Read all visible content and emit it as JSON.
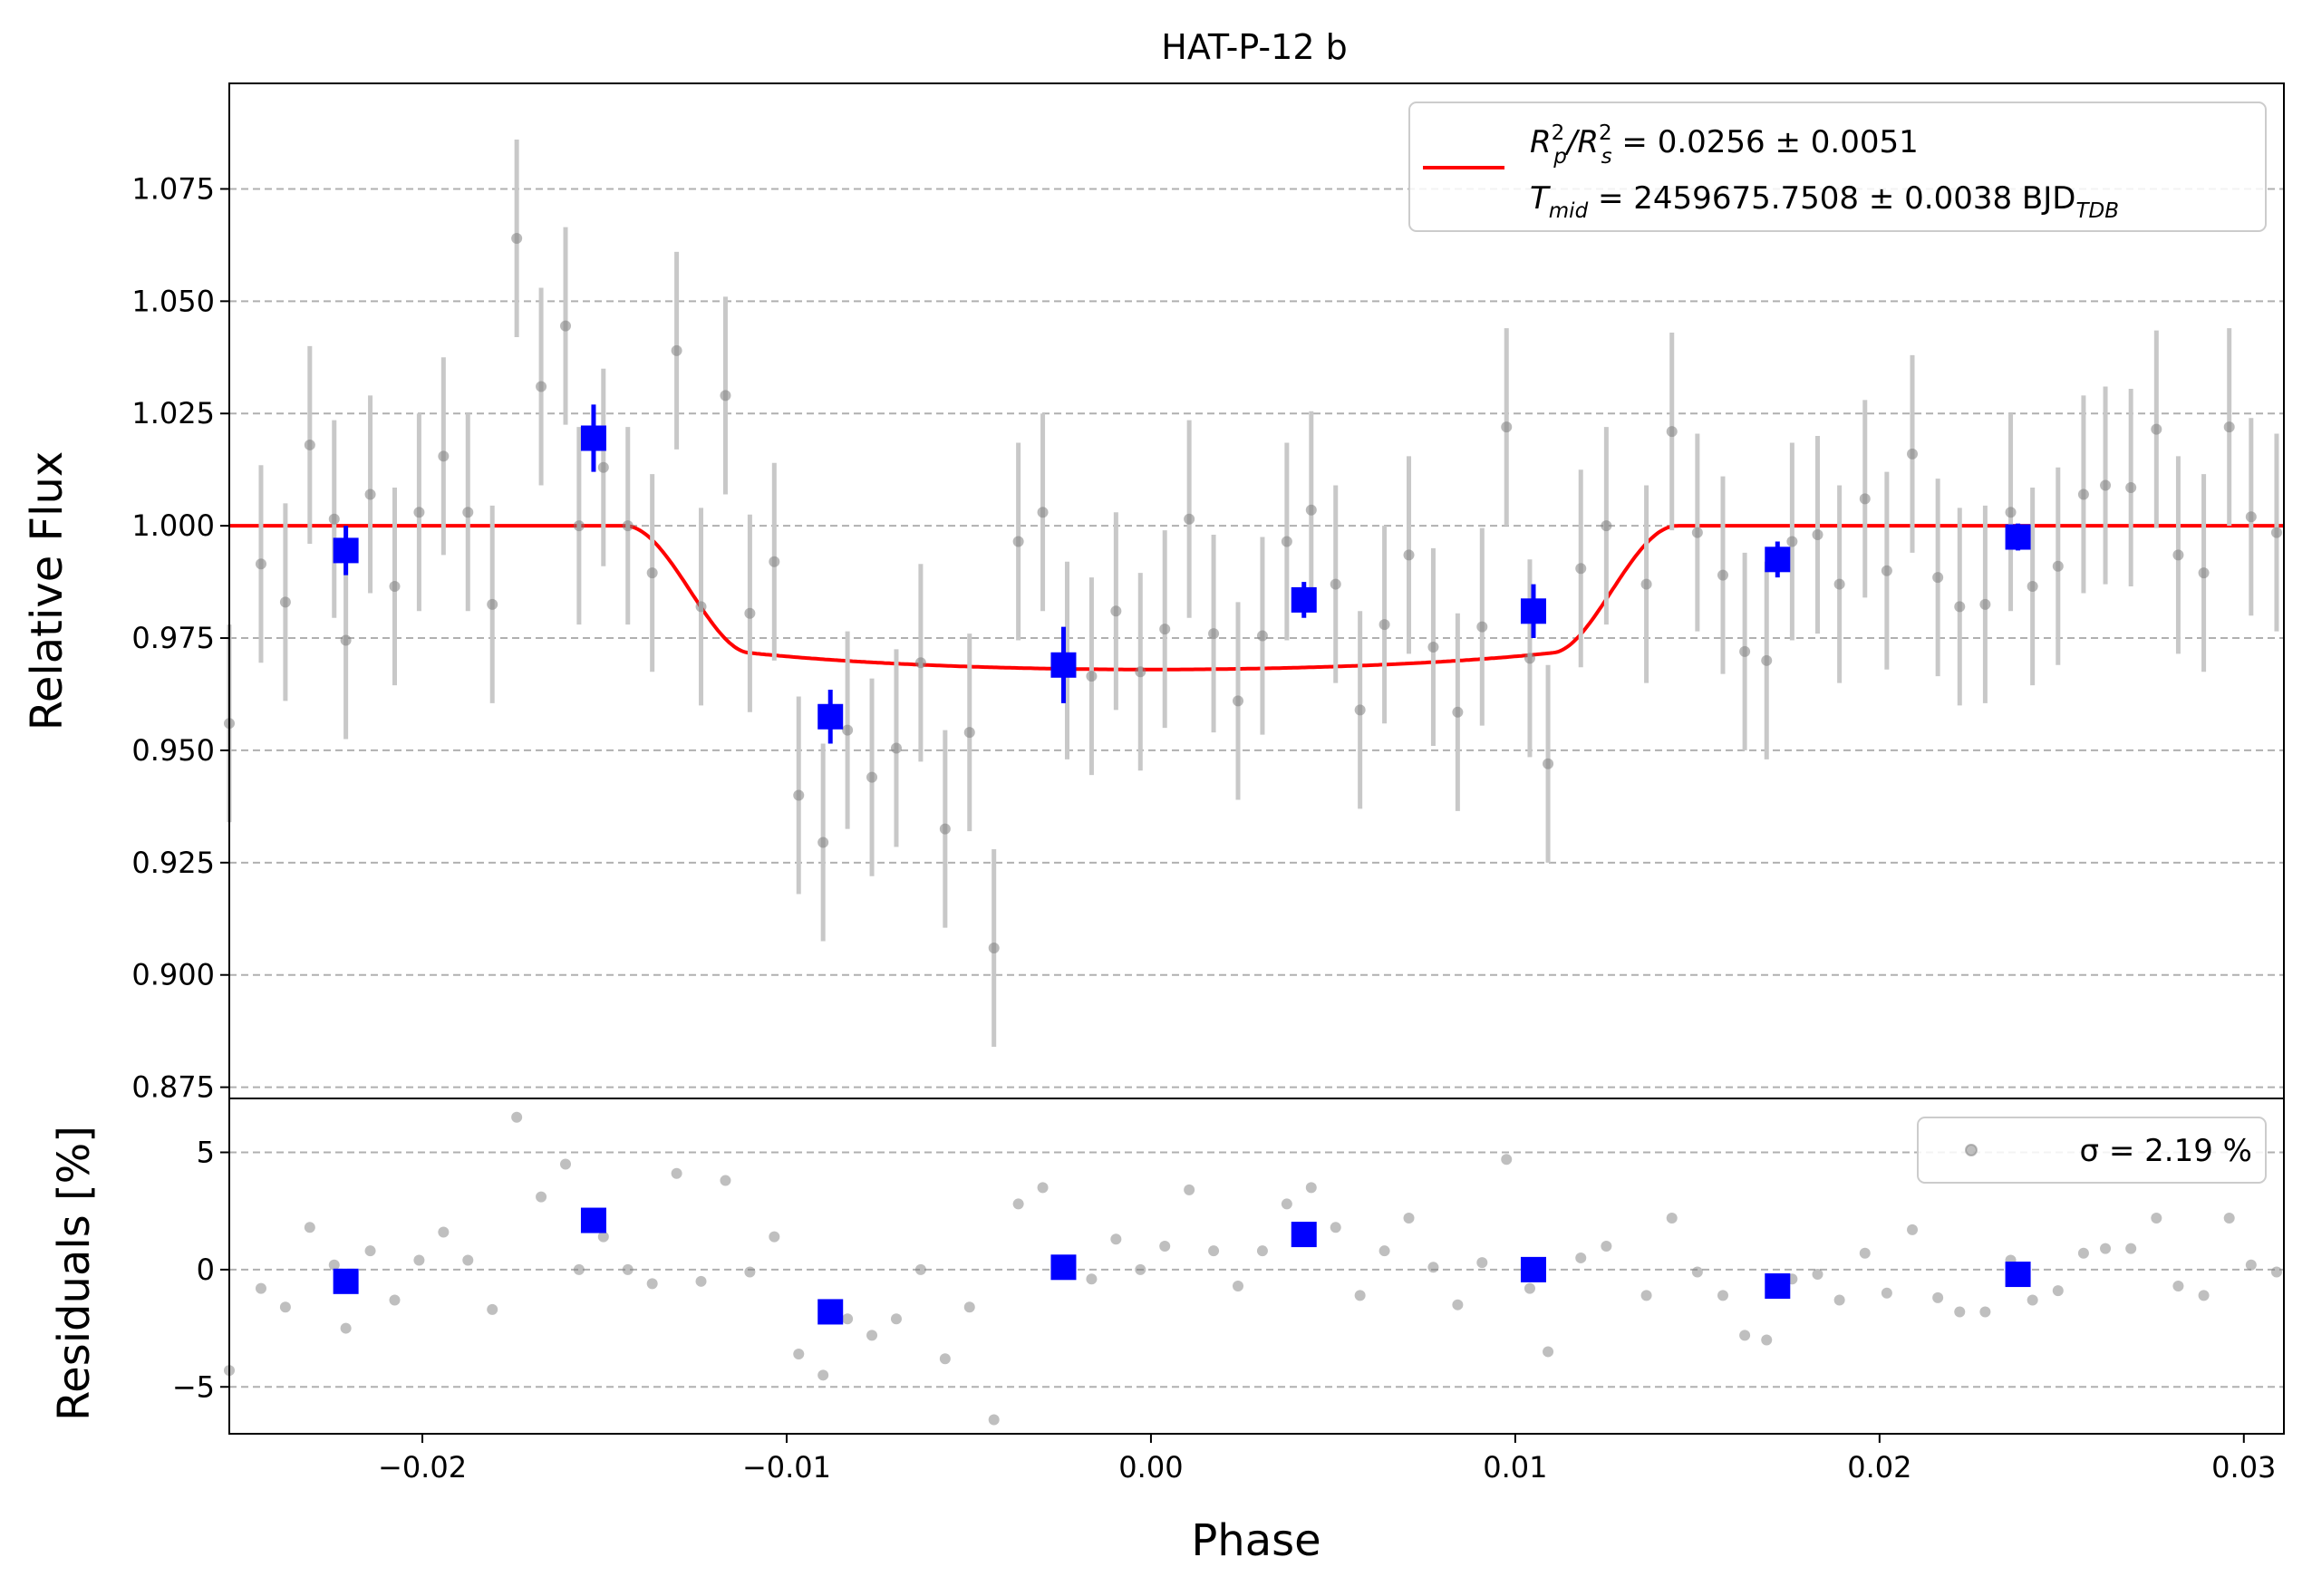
{
  "chart_data": [
    {
      "type": "scatter",
      "title": "HAT-P-12 b",
      "xlabel": "",
      "ylabel": "Relative Flux",
      "xlim": [
        -0.0253,
        0.0311
      ],
      "ylim": [
        0.8725,
        1.0985
      ],
      "grid": "horizontal dashed",
      "yticks": [
        "0.875",
        "0.900",
        "0.925",
        "0.950",
        "0.975",
        "1.000",
        "1.025",
        "1.050",
        "1.075"
      ],
      "legend": {
        "placement": "top-right",
        "rp_label": "R²ₚ/R²ₛ = 0.0256 ± 0.0051",
        "rp_main": "R",
        "rp_p": "p",
        "rp_mid": "/R",
        "rp_s": "s",
        "rp_value": " = 0.0256 ± 0.0051",
        "rp_sup": "2",
        "tmid_label": "Tmid = 2459675.7508 ± 0.0038 BJDTDB",
        "tmid_main": "T",
        "tmid_sub": "mid",
        "tmid_value": " = 2459675.7508 ± 0.0038 BJD",
        "tmid_unit_sub": "TDB"
      },
      "colors": {
        "raw": "#808080",
        "errorbar": "#c8c8c8",
        "binned": "#0000ff",
        "model": "#ff0000"
      },
      "raw_series": {
        "name": "",
        "error": 0.022,
        "x": [
          -0.0253,
          -0.02443,
          -0.02376,
          -0.02309,
          -0.02242,
          -0.0221,
          -0.02143,
          -0.02076,
          -0.02009,
          -0.01942,
          -0.01875,
          -0.01808,
          -0.01741,
          -0.01674,
          -0.01607,
          -0.0157,
          -0.01503,
          -0.01436,
          -0.01369,
          -0.01302,
          -0.01235,
          -0.01168,
          -0.01101,
          -0.01034,
          -0.00967,
          -0.009,
          -0.00833,
          -0.00766,
          -0.00699,
          -0.00632,
          -0.00565,
          -0.00498,
          -0.00431,
          -0.00364,
          -0.00297,
          -0.0023,
          -0.00163,
          -0.00096,
          -0.00029,
          0.00038,
          0.00105,
          0.00172,
          0.00239,
          0.00306,
          0.00373,
          0.0044,
          0.00507,
          0.00574,
          0.00641,
          0.00708,
          0.00775,
          0.00842,
          0.00909,
          0.00976,
          0.0104,
          0.0109,
          0.0118,
          0.0125,
          0.0136,
          0.0143,
          0.015,
          0.0157,
          0.0163,
          0.0169,
          0.0176,
          0.0183,
          0.0189,
          0.0196,
          0.0202,
          0.0209,
          0.0216,
          0.0222,
          0.0229,
          0.0236,
          0.0242,
          0.0249,
          0.0256,
          0.0262,
          0.0269,
          0.0276,
          0.0282,
          0.0289,
          0.0296,
          0.0302,
          0.0309
        ],
        "y": [
          0.956,
          0.9915,
          0.983,
          1.018,
          1.0015,
          0.9745,
          1.007,
          0.9865,
          1.003,
          1.0155,
          1.003,
          0.9825,
          1.064,
          1.031,
          1.0445,
          1.0,
          1.013,
          1.0,
          0.9895,
          1.039,
          0.982,
          1.029,
          0.9805,
          0.992,
          0.94,
          0.9295,
          0.9545,
          0.944,
          0.9505,
          0.9695,
          0.9325,
          0.954,
          0.906,
          0.9965,
          1.003,
          0.97,
          0.9665,
          0.981,
          0.9675,
          0.977,
          1.0015,
          0.976,
          0.961,
          0.9755,
          0.9965,
          1.0035,
          0.987,
          0.959,
          0.978,
          0.9935,
          0.973,
          0.9585,
          0.9775,
          1.022,
          0.9705,
          0.947,
          0.9905,
          1.0,
          0.987,
          1.021,
          0.9985,
          0.989,
          0.972,
          0.97,
          0.9965,
          0.998,
          0.987,
          1.006,
          0.99,
          1.016,
          0.9885,
          0.982,
          0.9825,
          1.003,
          0.9865,
          0.991,
          1.007,
          1.009,
          1.0085,
          1.0215,
          0.9935,
          0.9895,
          1.022,
          1.002,
          0.9985
        ]
      },
      "binned_series": {
        "name": "",
        "x": [
          -0.0221,
          -0.0153,
          -0.0088,
          -0.0024,
          0.0042,
          0.0105,
          0.0172,
          0.0238
        ],
        "y": [
          0.9945,
          1.0195,
          0.9575,
          0.969,
          0.9835,
          0.981,
          0.9925,
          0.9975
        ],
        "error": [
          0.0055,
          0.0075,
          0.006,
          0.0085,
          0.004,
          0.006,
          0.004,
          0.003
        ]
      },
      "model": {
        "name": "",
        "depth": 0.0256,
        "t14": 0.0289,
        "ingress": 0.0034,
        "min_flux": 0.968
      }
    },
    {
      "type": "scatter",
      "title": "",
      "xlabel": "Phase",
      "ylabel": "Residuals [%]",
      "xlim": [
        -0.0253,
        0.0311
      ],
      "ylim": [
        -7.0,
        7.3
      ],
      "grid": "horizontal dashed",
      "yticks": [
        "−5",
        "0",
        "5"
      ],
      "xticks": [
        "−0.02",
        "−0.01",
        "0.00",
        "0.01",
        "0.02",
        "0.03"
      ],
      "legend": {
        "placement": "top-right",
        "label": "σ = 2.19 %"
      },
      "raw_residuals": [
        -4.3,
        -0.8,
        -1.6,
        1.8,
        0.2,
        -2.5,
        0.8,
        -1.3,
        0.4,
        1.6,
        0.4,
        -1.7,
        6.5,
        3.1,
        4.5,
        0.0,
        1.4,
        0.0,
        -0.6,
        4.1,
        -0.5,
        3.8,
        -0.1,
        1.4,
        -3.6,
        -4.5,
        -2.1,
        -2.8,
        -2.1,
        0.0,
        -3.8,
        -1.6,
        -6.4,
        2.8,
        3.5,
        0.1,
        -0.4,
        1.3,
        0.0,
        1.0,
        3.4,
        0.8,
        -0.7,
        0.8,
        2.8,
        3.5,
        1.8,
        -1.1,
        0.8,
        2.2,
        0.1,
        -1.5,
        0.3,
        4.7,
        -0.8,
        -3.5,
        0.5,
        1.0,
        -1.1,
        2.2,
        -0.1,
        -1.1,
        -2.8,
        -3.0,
        -0.4,
        -0.2,
        -1.3,
        0.7,
        -1.0,
        1.7,
        -1.2,
        -1.8,
        -1.8,
        0.4,
        -1.3,
        -0.9,
        0.7,
        0.9,
        0.9,
        2.2,
        -0.7,
        -1.1,
        2.2,
        0.2,
        -0.1
      ],
      "binned_residuals": [
        -0.5,
        2.1,
        -1.8,
        0.1,
        1.5,
        0.0,
        -0.7,
        -0.2
      ]
    }
  ]
}
